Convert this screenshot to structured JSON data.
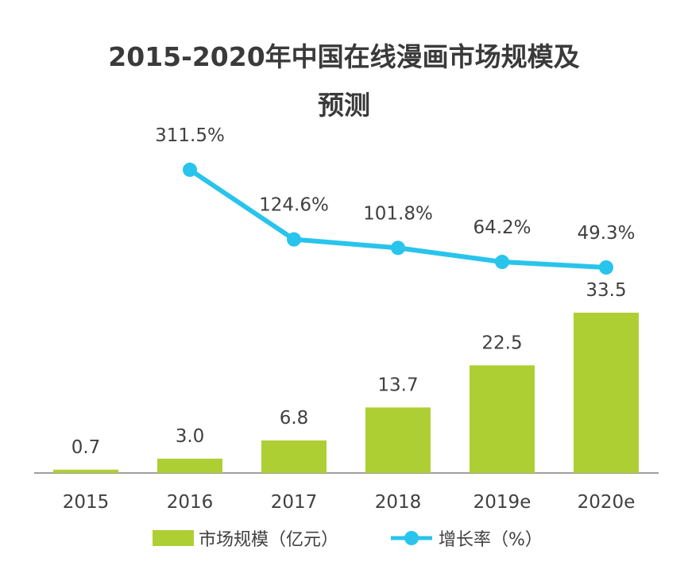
{
  "title": [
    "2015-2020年中国在线漫画市场规模及",
    "预测"
  ],
  "chart_data": {
    "type": "bar",
    "categories": [
      "2015",
      "2016",
      "2017",
      "2018",
      "2019e",
      "2020e"
    ],
    "series": [
      {
        "name": "市场规模（亿元）",
        "type": "bar",
        "values": [
          0.7,
          3.0,
          6.8,
          13.7,
          22.5,
          33.5
        ],
        "labels": [
          "0.7",
          "3.0",
          "6.8",
          "13.7",
          "22.5",
          "33.5"
        ]
      },
      {
        "name": "增长率（%）",
        "type": "line",
        "values": [
          null,
          311.5,
          124.6,
          101.8,
          64.2,
          49.3
        ],
        "labels": [
          "",
          "311.5%",
          "124.6%",
          "101.8%",
          "64.2%",
          "49.3%"
        ]
      }
    ],
    "bar_color": "#aecf34",
    "line_color": "#29c4ec"
  }
}
